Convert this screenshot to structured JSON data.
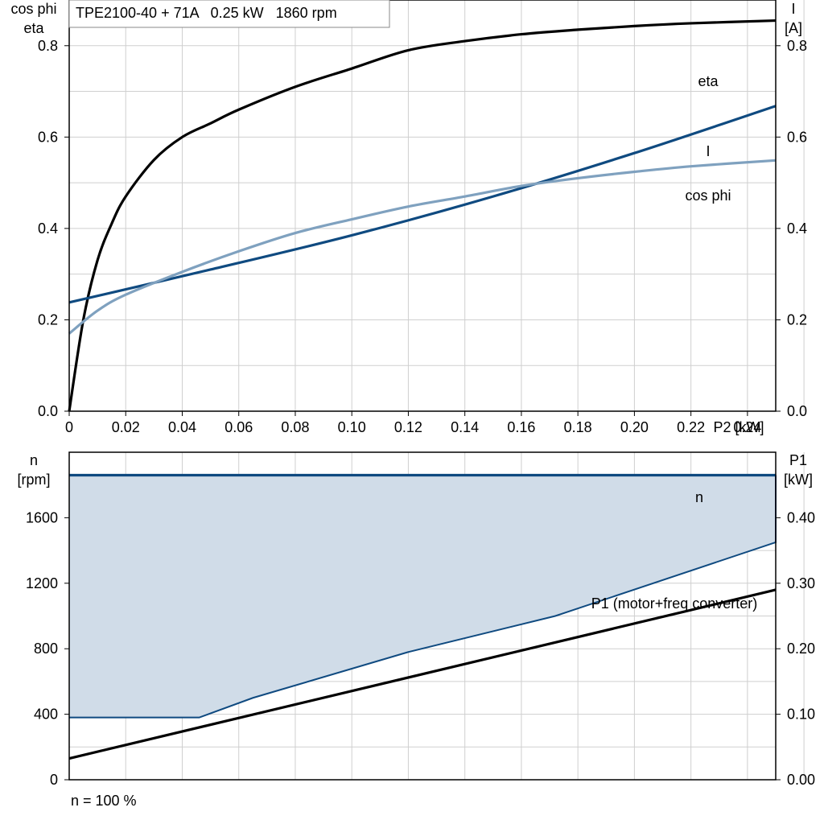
{
  "chart_data": [
    {
      "type": "line",
      "title": "TPE2100-40 + 71A   0.25 kW   1860 rpm",
      "xlabel": "P2 [kW]",
      "ylabel_left": [
        "cos phi",
        "eta"
      ],
      "ylabel_right": [
        "I",
        "[A]"
      ],
      "xlim": [
        0,
        0.25
      ],
      "ylim_left": [
        0,
        0.9
      ],
      "ylim_right": [
        0,
        0.9
      ],
      "grid": true,
      "x_ticks": [
        "0",
        "0.02",
        "0.04",
        "0.06",
        "0.08",
        "0.10",
        "0.12",
        "0.14",
        "0.16",
        "0.18",
        "0.20",
        "0.22",
        "0.24"
      ],
      "x_tick_values": [
        0,
        0.02,
        0.04,
        0.06,
        0.08,
        0.1,
        0.12,
        0.14,
        0.16,
        0.18,
        0.2,
        0.22,
        0.24
      ],
      "y_ticks_left": [
        "0.0",
        "0.2",
        "0.4",
        "0.6",
        "0.8"
      ],
      "y_ticks_right": [
        "0.0",
        "0.2",
        "0.4",
        "0.6",
        "0.8"
      ],
      "y_tick_values": [
        0,
        0.2,
        0.4,
        0.6,
        0.8
      ],
      "series": [
        {
          "name": "eta",
          "color": "#000000",
          "axis": "left",
          "x": [
            0,
            0.005,
            0.01,
            0.015,
            0.02,
            0.03,
            0.04,
            0.05,
            0.06,
            0.08,
            0.1,
            0.12,
            0.14,
            0.16,
            0.18,
            0.2,
            0.22,
            0.25
          ],
          "y": [
            0.0,
            0.2,
            0.33,
            0.41,
            0.47,
            0.55,
            0.6,
            0.63,
            0.66,
            0.71,
            0.75,
            0.79,
            0.81,
            0.825,
            0.835,
            0.843,
            0.849,
            0.855
          ]
        },
        {
          "name": "I",
          "color": "#0f4a80",
          "axis": "right",
          "x": [
            0,
            0.05,
            0.1,
            0.15,
            0.2,
            0.25
          ],
          "y": [
            0.238,
            0.31,
            0.385,
            0.47,
            0.565,
            0.668
          ]
        },
        {
          "name": "cos phi",
          "color": "#7fa1bf",
          "axis": "left",
          "x": [
            0,
            0.01,
            0.02,
            0.04,
            0.06,
            0.08,
            0.1,
            0.12,
            0.14,
            0.16,
            0.18,
            0.2,
            0.22,
            0.25
          ],
          "y": [
            0.17,
            0.22,
            0.255,
            0.305,
            0.35,
            0.39,
            0.42,
            0.448,
            0.47,
            0.493,
            0.51,
            0.524,
            0.536,
            0.549
          ]
        }
      ]
    },
    {
      "type": "line",
      "xlim": [
        0,
        0.25
      ],
      "ylabel_left": [
        "n",
        "[rpm]"
      ],
      "ylabel_right": [
        "P1",
        "[kW]"
      ],
      "ylim_left": [
        0,
        2000
      ],
      "ylim_right": [
        0,
        0.5
      ],
      "grid": true,
      "y_ticks_left": [
        "0",
        "400",
        "800",
        "1200",
        "1600"
      ],
      "y_tick_values_left": [
        0,
        400,
        800,
        1200,
        1600
      ],
      "y_ticks_right": [
        "0.00",
        "0.10",
        "0.20",
        "0.30",
        "0.40"
      ],
      "y_tick_values_right": [
        0,
        0.1,
        0.2,
        0.3,
        0.4
      ],
      "operating_area": {
        "fill": "#d0dce8",
        "stroke": "#0f4a80",
        "upper": {
          "x": [
            0,
            0.25
          ],
          "y": [
            1860,
            1860
          ]
        },
        "lower": {
          "x": [
            0,
            0.046,
            0.065,
            0.12,
            0.172,
            0.25
          ],
          "y": [
            380,
            380,
            500,
            780,
            1000,
            1450
          ]
        }
      },
      "series": [
        {
          "name": "n",
          "color": "#0f4a80",
          "axis": "left",
          "x": [
            0,
            0.25
          ],
          "y": [
            1860,
            1860
          ]
        },
        {
          "name": "P1 (motor+freq converter)",
          "color": "#000000",
          "axis": "right",
          "x": [
            0,
            0.25
          ],
          "y": [
            0.0325,
            0.29
          ]
        }
      ]
    }
  ],
  "footer_note": "n = 100 %"
}
